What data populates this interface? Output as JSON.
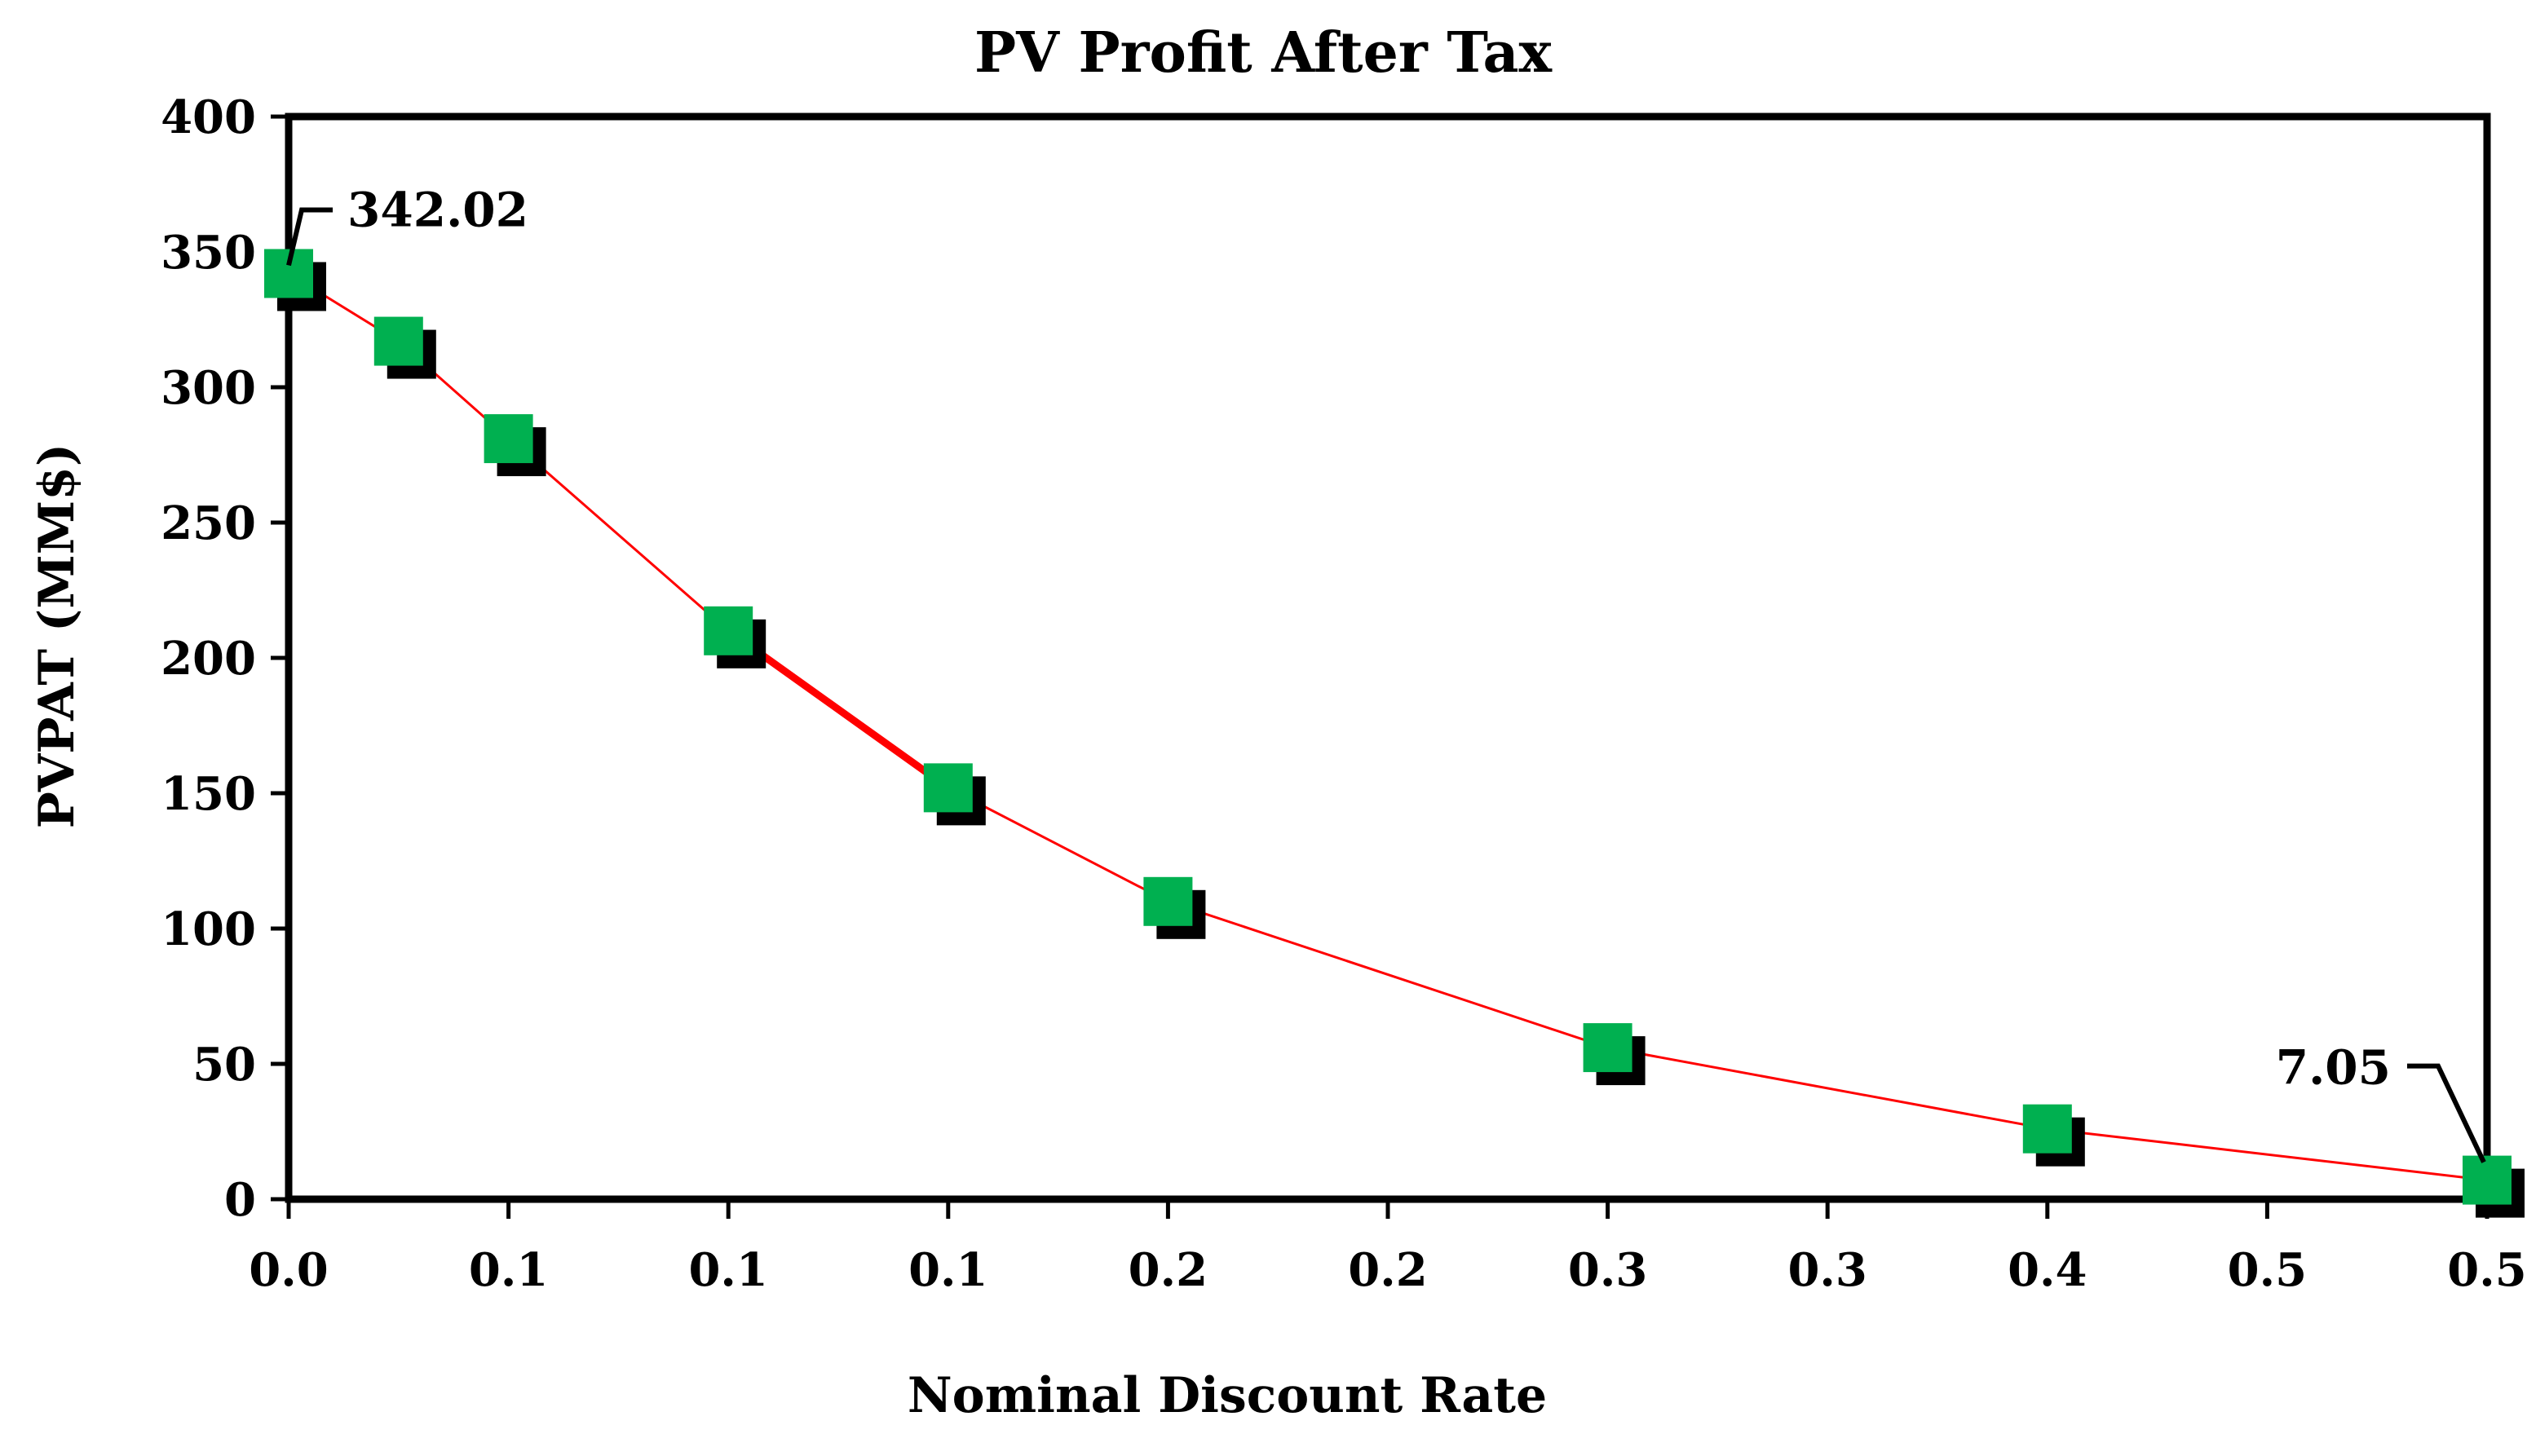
{
  "chart_data": {
    "type": "line",
    "title": "PV Profit After Tax",
    "xlabel": "Nominal Discount Rate",
    "ylabel": "PVPAT (MM$)",
    "xlim": [
      0,
      0.5
    ],
    "ylim": [
      0,
      400
    ],
    "yticks": [
      0,
      50,
      100,
      150,
      200,
      250,
      300,
      350,
      400
    ],
    "ytick_labels": [
      "0",
      "50",
      "100",
      "150",
      "200",
      "250",
      "300",
      "350",
      "400"
    ],
    "xtick_labels": [
      "0.0",
      "0.1",
      "0.1",
      "0.1",
      "0.2",
      "0.2",
      "0.3",
      "0.3",
      "0.4",
      "0.5",
      "0.5"
    ],
    "grid": false,
    "series": [
      {
        "name": "PVPAT",
        "line_color": "#ff0000",
        "marker_color": "#00b050",
        "marker_shadow_color": "#000000",
        "x": [
          0.0,
          0.025,
          0.05,
          0.1,
          0.15,
          0.2,
          0.3,
          0.4,
          0.5
        ],
        "values": [
          342.02,
          317,
          281,
          210,
          152,
          110,
          56,
          26,
          7.05
        ]
      }
    ],
    "annotations": [
      {
        "text": "342.02",
        "x": 0.0,
        "y": 342.02
      },
      {
        "text": "7.05",
        "x": 0.5,
        "y": 7.05
      }
    ]
  }
}
